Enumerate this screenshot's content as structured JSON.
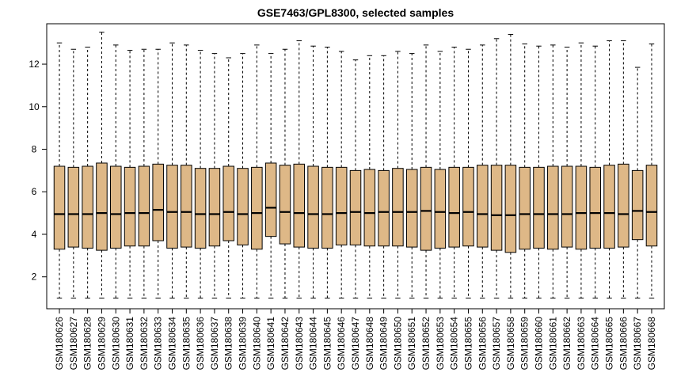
{
  "chart_data": {
    "type": "boxplot",
    "title": "GSE7463/GPL8300, selected samples",
    "xlabel": "",
    "ylabel": "",
    "ylim": [
      0.5,
      13.9
    ],
    "yticks": [
      2,
      4,
      6,
      8,
      10,
      12
    ],
    "box_color": "#deb887",
    "grid": false,
    "categories": [
      "GSM180626",
      "GSM180627",
      "GSM180628",
      "GSM180629",
      "GSM180630",
      "GSM180631",
      "GSM180632",
      "GSM180633",
      "GSM180634",
      "GSM180635",
      "GSM180636",
      "GSM180637",
      "GSM180638",
      "GSM180639",
      "GSM180640",
      "GSM180641",
      "GSM180642",
      "GSM180643",
      "GSM180644",
      "GSM180645",
      "GSM180646",
      "GSM180647",
      "GSM180648",
      "GSM180649",
      "GSM180650",
      "GSM180651",
      "GSM180652",
      "GSM180653",
      "GSM180654",
      "GSM180655",
      "GSM180656",
      "GSM180657",
      "GSM180658",
      "GSM180659",
      "GSM180660",
      "GSM180661",
      "GSM180662",
      "GSM180663",
      "GSM180664",
      "GSM180665",
      "GSM180666",
      "GSM180667",
      "GSM180668"
    ],
    "boxes": [
      {
        "min": 1.0,
        "q1": 3.3,
        "median": 4.95,
        "q3": 7.2,
        "max": 13.0
      },
      {
        "min": 1.0,
        "q1": 3.4,
        "median": 4.95,
        "q3": 7.15,
        "max": 12.7
      },
      {
        "min": 1.0,
        "q1": 3.35,
        "median": 4.95,
        "q3": 7.2,
        "max": 12.8
      },
      {
        "min": 1.0,
        "q1": 3.25,
        "median": 5.0,
        "q3": 7.35,
        "max": 13.5
      },
      {
        "min": 1.0,
        "q1": 3.35,
        "median": 4.95,
        "q3": 7.2,
        "max": 12.9
      },
      {
        "min": 1.0,
        "q1": 3.45,
        "median": 5.0,
        "q3": 7.15,
        "max": 12.65
      },
      {
        "min": 1.0,
        "q1": 3.45,
        "median": 5.0,
        "q3": 7.2,
        "max": 12.7
      },
      {
        "min": 1.0,
        "q1": 3.7,
        "median": 5.15,
        "q3": 7.3,
        "max": 12.7
      },
      {
        "min": 1.0,
        "q1": 3.35,
        "median": 5.05,
        "q3": 7.25,
        "max": 13.0
      },
      {
        "min": 1.0,
        "q1": 3.4,
        "median": 5.05,
        "q3": 7.25,
        "max": 12.9
      },
      {
        "min": 1.0,
        "q1": 3.35,
        "median": 4.95,
        "q3": 7.1,
        "max": 12.65
      },
      {
        "min": 1.0,
        "q1": 3.45,
        "median": 4.95,
        "q3": 7.1,
        "max": 12.5
      },
      {
        "min": 1.0,
        "q1": 3.7,
        "median": 5.05,
        "q3": 7.2,
        "max": 12.3
      },
      {
        "min": 1.0,
        "q1": 3.5,
        "median": 4.95,
        "q3": 7.1,
        "max": 12.5
      },
      {
        "min": 1.0,
        "q1": 3.3,
        "median": 5.0,
        "q3": 7.15,
        "max": 12.9
      },
      {
        "min": 1.0,
        "q1": 3.9,
        "median": 5.25,
        "q3": 7.35,
        "max": 12.5
      },
      {
        "min": 1.0,
        "q1": 3.55,
        "median": 5.05,
        "q3": 7.25,
        "max": 12.7
      },
      {
        "min": 1.0,
        "q1": 3.4,
        "median": 5.0,
        "q3": 7.3,
        "max": 13.1
      },
      {
        "min": 1.0,
        "q1": 3.35,
        "median": 4.95,
        "q3": 7.2,
        "max": 12.85
      },
      {
        "min": 1.0,
        "q1": 3.35,
        "median": 4.95,
        "q3": 7.15,
        "max": 12.8
      },
      {
        "min": 1.0,
        "q1": 3.5,
        "median": 5.0,
        "q3": 7.15,
        "max": 12.6
      },
      {
        "min": 1.0,
        "q1": 3.5,
        "median": 5.05,
        "q3": 7.0,
        "max": 12.2
      },
      {
        "min": 1.0,
        "q1": 3.45,
        "median": 5.0,
        "q3": 7.05,
        "max": 12.4
      },
      {
        "min": 1.0,
        "q1": 3.45,
        "median": 5.05,
        "q3": 7.0,
        "max": 12.4
      },
      {
        "min": 1.0,
        "q1": 3.45,
        "median": 5.05,
        "q3": 7.1,
        "max": 12.6
      },
      {
        "min": 1.0,
        "q1": 3.4,
        "median": 5.05,
        "q3": 7.05,
        "max": 12.5
      },
      {
        "min": 1.0,
        "q1": 3.25,
        "median": 5.1,
        "q3": 7.15,
        "max": 12.9
      },
      {
        "min": 1.0,
        "q1": 3.35,
        "median": 5.05,
        "q3": 7.05,
        "max": 12.6
      },
      {
        "min": 1.0,
        "q1": 3.4,
        "median": 5.0,
        "q3": 7.15,
        "max": 12.8
      },
      {
        "min": 1.0,
        "q1": 3.45,
        "median": 5.05,
        "q3": 7.15,
        "max": 12.7
      },
      {
        "min": 1.0,
        "q1": 3.4,
        "median": 4.95,
        "q3": 7.25,
        "max": 12.9
      },
      {
        "min": 1.0,
        "q1": 3.25,
        "median": 4.9,
        "q3": 7.25,
        "max": 13.2
      },
      {
        "min": 1.0,
        "q1": 3.15,
        "median": 4.9,
        "q3": 7.25,
        "max": 13.4
      },
      {
        "min": 1.0,
        "q1": 3.3,
        "median": 4.95,
        "q3": 7.15,
        "max": 12.95
      },
      {
        "min": 1.0,
        "q1": 3.35,
        "median": 4.95,
        "q3": 7.15,
        "max": 12.85
      },
      {
        "min": 1.0,
        "q1": 3.3,
        "median": 4.95,
        "q3": 7.2,
        "max": 12.9
      },
      {
        "min": 1.0,
        "q1": 3.4,
        "median": 4.95,
        "q3": 7.2,
        "max": 12.8
      },
      {
        "min": 1.0,
        "q1": 3.3,
        "median": 5.0,
        "q3": 7.2,
        "max": 13.0
      },
      {
        "min": 1.0,
        "q1": 3.35,
        "median": 5.0,
        "q3": 7.15,
        "max": 12.85
      },
      {
        "min": 1.0,
        "q1": 3.35,
        "median": 5.0,
        "q3": 7.25,
        "max": 13.1
      },
      {
        "min": 1.0,
        "q1": 3.4,
        "median": 4.95,
        "q3": 7.3,
        "max": 13.1
      },
      {
        "min": 1.0,
        "q1": 3.75,
        "median": 5.1,
        "q3": 7.0,
        "max": 11.85
      },
      {
        "min": 1.0,
        "q1": 3.45,
        "median": 5.05,
        "q3": 7.25,
        "max": 12.95
      }
    ]
  }
}
